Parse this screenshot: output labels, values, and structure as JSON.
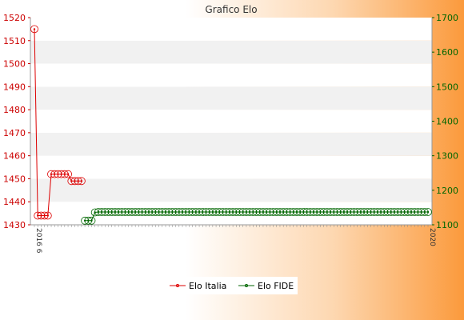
{
  "chart_data": {
    "type": "line",
    "title": "Grafico Elo",
    "xlabel": "",
    "ylabel_left": "",
    "ylabel_right": "",
    "ylim_left": [
      1430,
      1520
    ],
    "ylim_right": [
      1100,
      1700
    ],
    "yticks_left": [
      "1430",
      "1440",
      "1450",
      "1460",
      "1470",
      "1480",
      "1490",
      "1500",
      "1510",
      "1520"
    ],
    "yticks_right": [
      "1100",
      "1200",
      "1300",
      "1400",
      "1500",
      "1600",
      "1700"
    ],
    "x_tick_count": 118,
    "x_tick_labels_readable": {
      "0": "2016 6",
      "117": "2020"
    },
    "grid": "horizontal bands",
    "legend_position": "bottom-center",
    "series": [
      {
        "name": "Elo Italia",
        "axis": "left",
        "color": "#dd0000",
        "x": [
          0,
          1,
          2,
          3,
          4,
          5,
          6,
          7,
          8,
          9,
          10,
          11,
          12,
          13,
          14
        ],
        "values": [
          1515,
          1434,
          1434,
          1434,
          1434,
          1452,
          1452,
          1452,
          1452,
          1452,
          1452,
          1449,
          1449,
          1449,
          1449
        ]
      },
      {
        "name": "Elo FIDE",
        "axis": "right",
        "color": "#006600",
        "x": [
          15,
          16,
          17,
          18,
          19,
          20,
          21,
          22,
          23,
          24,
          25,
          26,
          27,
          28,
          29,
          30,
          31,
          32,
          33,
          34,
          35,
          36,
          37,
          38,
          39,
          40,
          41,
          42,
          43,
          44,
          45,
          46,
          47,
          48,
          49,
          50,
          51,
          52,
          53,
          54,
          55,
          56,
          57,
          58,
          59,
          60,
          61,
          62,
          63,
          64,
          65,
          66,
          67,
          68,
          69,
          70,
          71,
          72,
          73,
          74,
          75,
          76,
          77,
          78,
          79,
          80,
          81,
          82,
          83,
          84,
          85,
          86,
          87,
          88,
          89,
          90,
          91,
          92,
          93,
          94,
          95,
          96,
          97,
          98,
          99,
          100,
          101,
          102,
          103,
          104,
          105,
          106,
          107,
          108,
          109,
          110,
          111,
          112,
          113,
          114,
          115,
          116,
          117
        ],
        "values": [
          1112,
          1112,
          1112,
          1136,
          1137,
          1137,
          1137,
          1137,
          1137,
          1137,
          1137,
          1137,
          1137,
          1137,
          1137,
          1137,
          1137,
          1137,
          1137,
          1137,
          1137,
          1137,
          1137,
          1137,
          1137,
          1137,
          1137,
          1137,
          1137,
          1137,
          1137,
          1137,
          1137,
          1137,
          1137,
          1137,
          1137,
          1137,
          1137,
          1137,
          1137,
          1137,
          1137,
          1137,
          1137,
          1137,
          1137,
          1137,
          1137,
          1137,
          1137,
          1137,
          1137,
          1137,
          1137,
          1137,
          1137,
          1137,
          1137,
          1137,
          1137,
          1137,
          1137,
          1137,
          1137,
          1137,
          1137,
          1137,
          1137,
          1137,
          1137,
          1137,
          1137,
          1137,
          1137,
          1137,
          1137,
          1137,
          1137,
          1137,
          1137,
          1137,
          1137,
          1137,
          1137,
          1137,
          1137,
          1137,
          1137,
          1137,
          1137,
          1137,
          1137,
          1137,
          1137,
          1137,
          1137,
          1137,
          1137,
          1137,
          1137,
          1137,
          1137
        ]
      }
    ]
  }
}
